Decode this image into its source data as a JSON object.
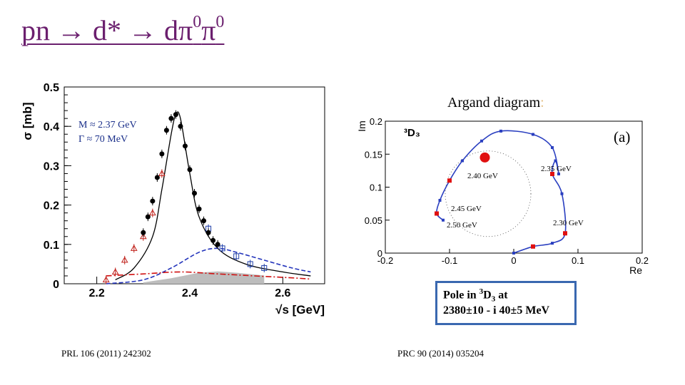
{
  "title": {
    "prefix": "pn → d* → dπ",
    "sup1": "0",
    "mid": "π",
    "sup2": "0"
  },
  "left_plot": {
    "ylabel": "σ [mb]",
    "xlabel": "√s [GeV]",
    "y_ticks": [
      "0",
      "0.1",
      "0.2",
      "0.3",
      "0.4",
      "0.5"
    ],
    "x_ticks": [
      "2.2",
      "2.4",
      "2.6"
    ],
    "annotation_m": "M ≈ 2.37 GeV",
    "annotation_g": "Γ ≈ 70 MeV",
    "reference": "PRL 106 (2011) 242302"
  },
  "right_plot": {
    "caption_text": "Argand diagram",
    "caption_colon": ":",
    "panel_label": "(a)",
    "wave_label": "³D₃",
    "ylabel": "Im",
    "xlabel": "Re",
    "y_ticks": [
      "0",
      "0.05",
      "0.1",
      "0.15",
      "0.2"
    ],
    "x_ticks": [
      "-0.2",
      "-0.1",
      "0",
      "0.1",
      "0.2"
    ],
    "energy_labels": [
      "2.35 GeV",
      "2.40 GeV",
      "2.45 GeV",
      "2.50 GeV",
      "2.30 GeV"
    ],
    "reference": "PRC 90 (2014) 035204"
  },
  "pole_box": {
    "line1_pre": "Pole in ",
    "line1_sup": "3",
    "line1_D": "D",
    "line1_sub": "3",
    "line1_post": " at",
    "line2": "2380±10 - i 40±5  MeV"
  },
  "colors": {
    "title": "#6b1f6e",
    "resonance_curve": "#000000",
    "data_black": "#000000",
    "data_red": "#c0201a",
    "data_blue": "#1f3fa8",
    "background_blue": "#2233bb",
    "dashdot_red": "#d01010",
    "argand_blue": "#2a3fc0",
    "argand_marker": "#e01010",
    "box_border": "#3a68b0"
  },
  "chart_data": [
    {
      "type": "line",
      "title": "",
      "xlabel": "√s [GeV]",
      "ylabel": "σ [mb]",
      "xlim": [
        2.13,
        2.69
      ],
      "ylim": [
        0,
        0.5
      ],
      "series": [
        {
          "name": "pn→dπ0π0 data (black)",
          "x": [
            2.3,
            2.31,
            2.32,
            2.33,
            2.34,
            2.35,
            2.36,
            2.37,
            2.38,
            2.39,
            2.4,
            2.41,
            2.42,
            2.43,
            2.44,
            2.45,
            2.46
          ],
          "values": [
            0.13,
            0.17,
            0.21,
            0.27,
            0.33,
            0.39,
            0.42,
            0.43,
            0.4,
            0.35,
            0.29,
            0.23,
            0.19,
            0.16,
            0.13,
            0.11,
            0.1
          ]
        },
        {
          "name": "red data",
          "x": [
            2.22,
            2.24,
            2.26,
            2.28,
            2.3,
            2.32,
            2.34
          ],
          "values": [
            0.01,
            0.03,
            0.06,
            0.09,
            0.12,
            0.18,
            0.28
          ]
        },
        {
          "name": "blue data",
          "x": [
            2.44,
            2.47,
            2.5,
            2.53,
            2.56
          ],
          "values": [
            0.14,
            0.09,
            0.07,
            0.05,
            0.04
          ]
        },
        {
          "name": "resonance fit",
          "x": [
            2.24,
            2.28,
            2.32,
            2.34,
            2.36,
            2.37,
            2.38,
            2.4,
            2.42,
            2.46,
            2.52,
            2.6,
            2.66
          ],
          "values": [
            0.01,
            0.04,
            0.12,
            0.24,
            0.38,
            0.43,
            0.42,
            0.28,
            0.17,
            0.09,
            0.05,
            0.03,
            0.02
          ]
        },
        {
          "name": "background (blue dashed)",
          "x": [
            2.22,
            2.3,
            2.36,
            2.42,
            2.46,
            2.5,
            2.56,
            2.62,
            2.66
          ],
          "values": [
            0.0,
            0.01,
            0.04,
            0.08,
            0.09,
            0.08,
            0.06,
            0.04,
            0.03
          ]
        },
        {
          "name": "red dash-dot",
          "x": [
            2.22,
            2.3,
            2.38,
            2.46,
            2.54,
            2.62,
            2.66
          ],
          "values": [
            0.02,
            0.025,
            0.03,
            0.025,
            0.02,
            0.015,
            0.012
          ]
        }
      ]
    },
    {
      "type": "scatter",
      "title": "Argand diagram",
      "xlabel": "Re",
      "ylabel": "Im",
      "xlim": [
        -0.2,
        0.2
      ],
      "ylim": [
        0,
        0.2
      ],
      "series": [
        {
          "name": "3D3 partial wave",
          "x": [
            0.0,
            0.03,
            0.06,
            0.08,
            0.075,
            0.06,
            0.065,
            0.07,
            0.06,
            0.03,
            -0.02,
            -0.05,
            -0.08,
            -0.1,
            -0.115,
            -0.12,
            -0.11
          ],
          "values": [
            0.0,
            0.01,
            0.015,
            0.03,
            0.09,
            0.12,
            0.14,
            0.12,
            0.16,
            0.18,
            0.185,
            0.17,
            0.14,
            0.11,
            0.08,
            0.06,
            0.05
          ]
        }
      ],
      "highlight": {
        "x": -0.045,
        "y": 0.145
      }
    }
  ]
}
